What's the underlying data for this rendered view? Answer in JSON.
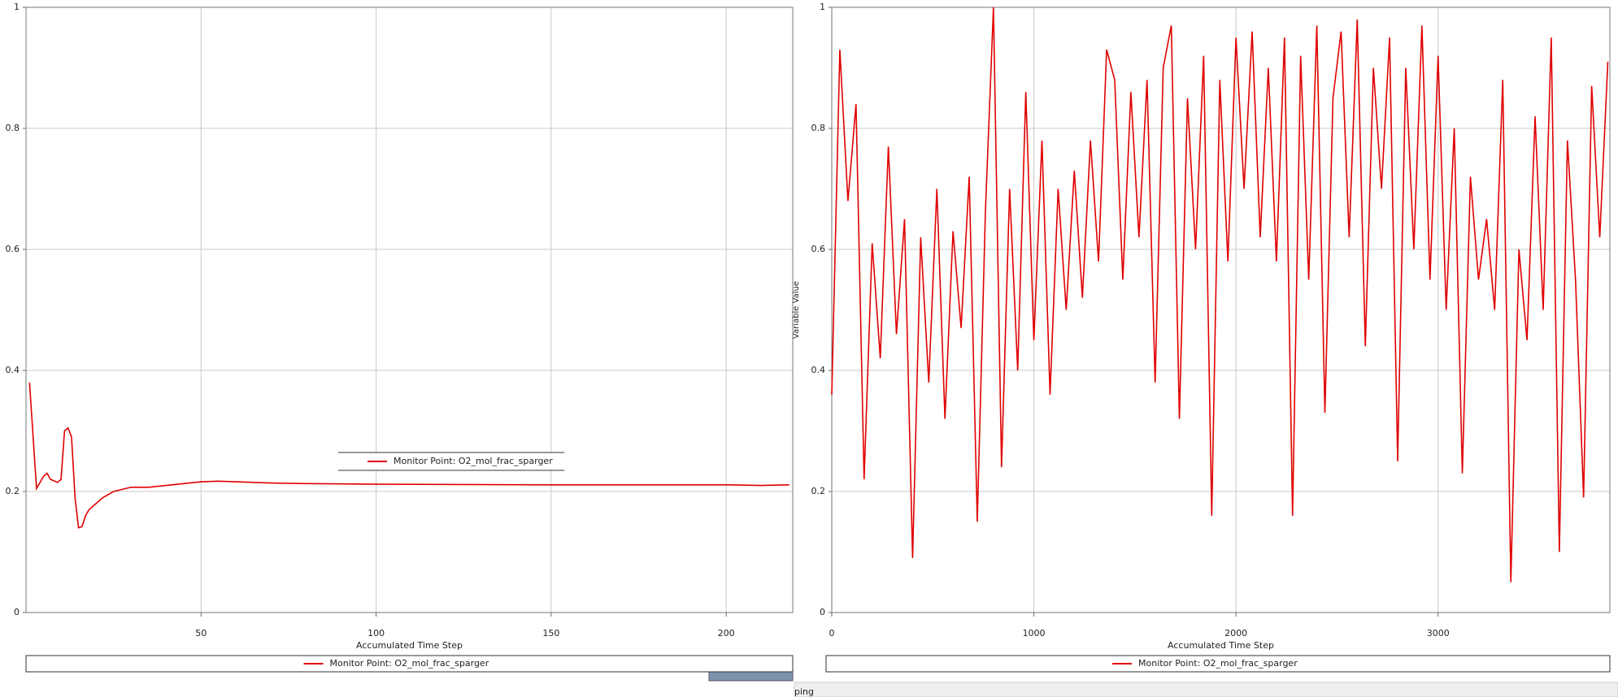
{
  "chart_data": [
    {
      "type": "line",
      "x_label": "Accumulated Time Step",
      "xlim": [
        0,
        219
      ],
      "xticks": [
        50,
        100,
        150,
        200
      ],
      "ylim": [
        0,
        1
      ],
      "yticks": [
        0,
        0.2,
        0.4,
        0.6,
        0.8,
        1
      ],
      "grid": true,
      "x": [
        1,
        3,
        5,
        6,
        7,
        9,
        10,
        11,
        12,
        13,
        14,
        15,
        16,
        17,
        18,
        20,
        22,
        25,
        30,
        35,
        40,
        45,
        50,
        55,
        60,
        70,
        80,
        100,
        150,
        200,
        210,
        218
      ],
      "series": [
        {
          "name": "Monitor Point: O2_mol_frac_sparger",
          "color": "#e00000",
          "values": [
            0.38,
            0.205,
            0.225,
            0.23,
            0.22,
            0.215,
            0.22,
            0.3,
            0.305,
            0.29,
            0.19,
            0.14,
            0.142,
            0.16,
            0.17,
            0.18,
            0.19,
            0.2,
            0.207,
            0.207,
            0.21,
            0.213,
            0.216,
            0.217,
            0.216,
            0.214,
            0.213,
            0.212,
            0.211,
            0.211,
            0.21,
            0.211
          ]
        }
      ]
    },
    {
      "type": "line",
      "x_label": "Accumulated Time Step",
      "y_label": "Variable Value",
      "xlim": [
        0,
        3850
      ],
      "xticks": [
        0,
        1000,
        2000,
        3000
      ],
      "ylim": [
        0,
        1
      ],
      "yticks": [
        0,
        0.2,
        0.4,
        0.6,
        0.8,
        1
      ],
      "grid": true,
      "x": [
        0,
        40,
        80,
        120,
        160,
        200,
        240,
        280,
        320,
        360,
        400,
        440,
        480,
        520,
        560,
        600,
        640,
        680,
        720,
        760,
        800,
        840,
        880,
        920,
        960,
        1000,
        1040,
        1080,
        1120,
        1160,
        1200,
        1240,
        1280,
        1320,
        1360,
        1400,
        1440,
        1480,
        1520,
        1560,
        1600,
        1640,
        1680,
        1720,
        1760,
        1800,
        1840,
        1880,
        1920,
        1960,
        2000,
        2040,
        2080,
        2120,
        2160,
        2200,
        2240,
        2280,
        2320,
        2360,
        2400,
        2440,
        2480,
        2520,
        2560,
        2600,
        2640,
        2680,
        2720,
        2760,
        2800,
        2840,
        2880,
        2920,
        2960,
        3000,
        3040,
        3080,
        3120,
        3160,
        3200,
        3240,
        3280,
        3320,
        3360,
        3400,
        3440,
        3480,
        3520,
        3560,
        3600,
        3640,
        3680,
        3720,
        3760,
        3800,
        3840
      ],
      "series": [
        {
          "name": "Monitor Point: O2_mol_frac_sparger",
          "color": "#e00000",
          "values": [
            0.36,
            0.93,
            0.68,
            0.84,
            0.22,
            0.61,
            0.42,
            0.77,
            0.46,
            0.65,
            0.09,
            0.62,
            0.38,
            0.7,
            0.32,
            0.63,
            0.47,
            0.72,
            0.15,
            0.66,
            1.0,
            0.24,
            0.7,
            0.4,
            0.86,
            0.45,
            0.78,
            0.36,
            0.7,
            0.5,
            0.73,
            0.52,
            0.78,
            0.58,
            0.93,
            0.88,
            0.55,
            0.86,
            0.62,
            0.88,
            0.38,
            0.9,
            0.97,
            0.32,
            0.85,
            0.6,
            0.92,
            0.16,
            0.88,
            0.58,
            0.95,
            0.7,
            0.96,
            0.62,
            0.9,
            0.58,
            0.95,
            0.16,
            0.92,
            0.55,
            0.97,
            0.33,
            0.85,
            0.96,
            0.62,
            0.98,
            0.44,
            0.9,
            0.7,
            0.95,
            0.25,
            0.9,
            0.6,
            0.97,
            0.55,
            0.92,
            0.5,
            0.8,
            0.23,
            0.72,
            0.55,
            0.65,
            0.5,
            0.88,
            0.05,
            0.6,
            0.45,
            0.82,
            0.5,
            0.95,
            0.1,
            0.78,
            0.55,
            0.19,
            0.87,
            0.62,
            0.91
          ]
        }
      ]
    }
  ],
  "status_text": "ping"
}
